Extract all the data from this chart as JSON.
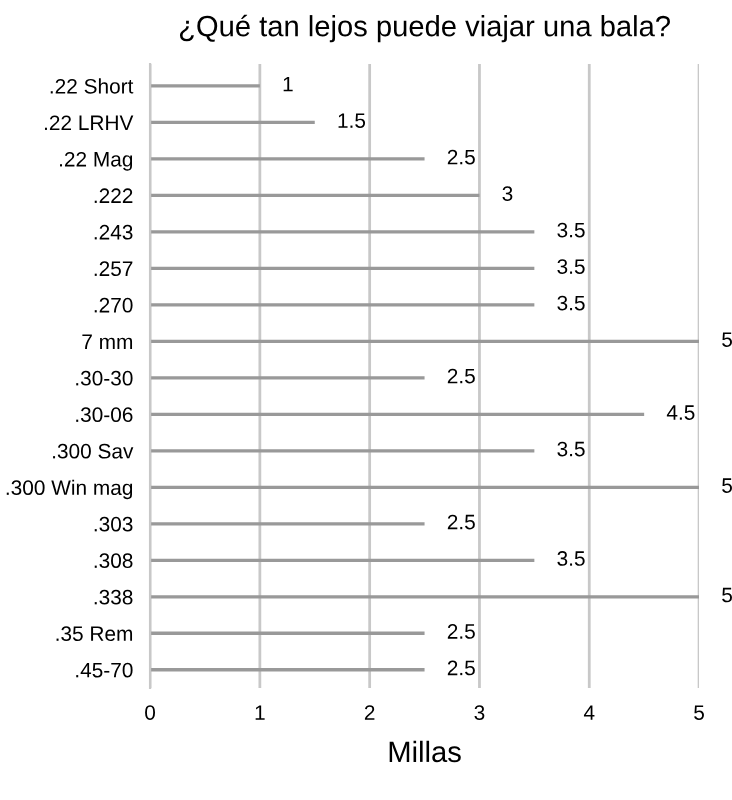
{
  "chart_data": {
    "type": "bar",
    "orientation": "horizontal",
    "title": "¿Qué tan lejos puede viajar una bala?",
    "xlabel": "Millas",
    "categories": [
      ".22 Short",
      ".22 LRHV",
      ".22 Mag",
      ".222",
      ".243",
      ".257",
      ".270",
      "7 mm",
      ".30-30",
      ".30-06",
      ".300 Sav",
      ".300 Win mag",
      ".303",
      ".308",
      ".338",
      ".35 Rem",
      ".45-70"
    ],
    "values": [
      1,
      1.5,
      2.5,
      3,
      3.5,
      3.5,
      3.5,
      5,
      2.5,
      4.5,
      3.5,
      5,
      2.5,
      3.5,
      5,
      2.5,
      2.5
    ],
    "color": "#999999",
    "xlim": [
      0,
      5
    ],
    "xticks": [
      0,
      1,
      2,
      3,
      4,
      5
    ],
    "grid": "x",
    "data_labels": true,
    "legend": false
  }
}
